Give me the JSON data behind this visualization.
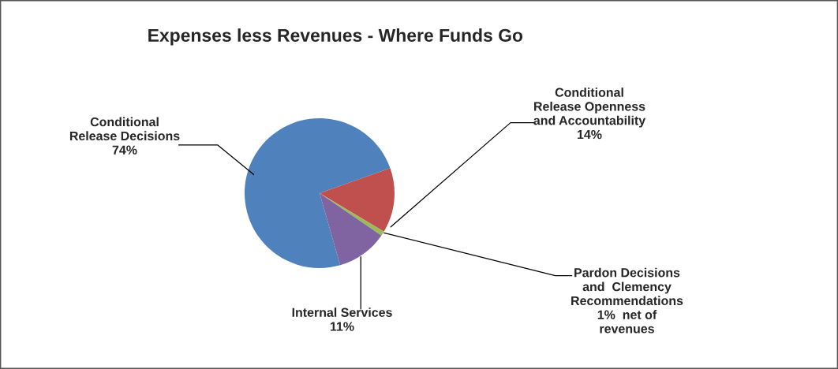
{
  "chart_data": {
    "type": "pie",
    "title": "Expenses less Revenues - Where Funds Go",
    "categories": [
      "Conditional\nRelease Decisions",
      "Conditional\nRelease Openness\nand Accountability",
      "Pardon Decisions\nand  Clemency\nRecommendations",
      "Internal Services"
    ],
    "values": [
      74,
      14,
      1,
      11
    ],
    "value_labels": [
      "74%",
      "14%",
      "1%  net of\nrevenues",
      "11%"
    ],
    "colors": [
      "#4f81bd",
      "#c0504d",
      "#9bbb59",
      "#8064a2"
    ],
    "legend": false
  }
}
